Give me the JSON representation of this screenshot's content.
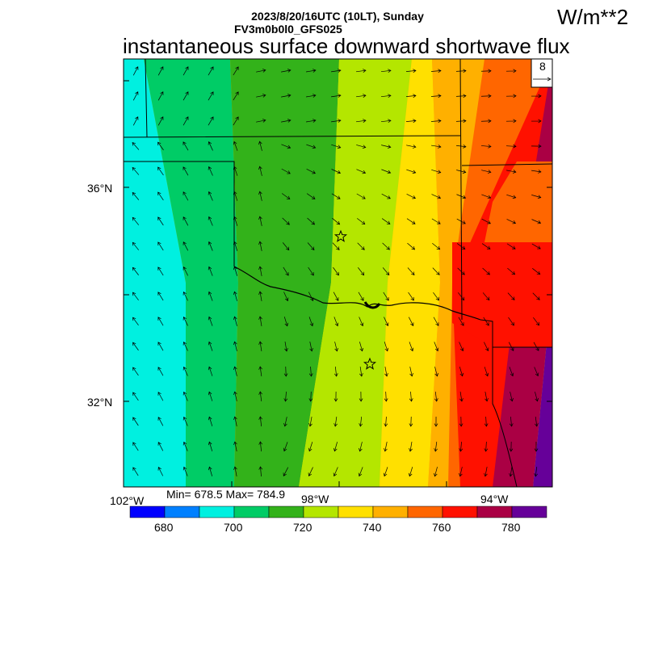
{
  "header": {
    "line1": "2023/8/20/16UTC (10LT), Sunday",
    "line2": "FV3m0b0l0_GFS025",
    "title": "instantaneous surface downward shortwave flux",
    "units": "W/m**2"
  },
  "stats": "Min= 678.5 Max= 784.9",
  "lat_labels": [
    "36°N",
    "32°N"
  ],
  "lon_labels": [
    "102°W",
    "98°W",
    "94°W"
  ],
  "vector_ref": "8",
  "colorbar": {
    "colors": [
      "#0000ff",
      "#0080ff",
      "#00f0e0",
      "#00cc66",
      "#33b21a",
      "#b4e600",
      "#ffe000",
      "#ffb000",
      "#ff6600",
      "#ff1100",
      "#aa0044",
      "#660099"
    ],
    "ticks": [
      "680",
      "700",
      "720",
      "740",
      "760",
      "780"
    ]
  }
}
